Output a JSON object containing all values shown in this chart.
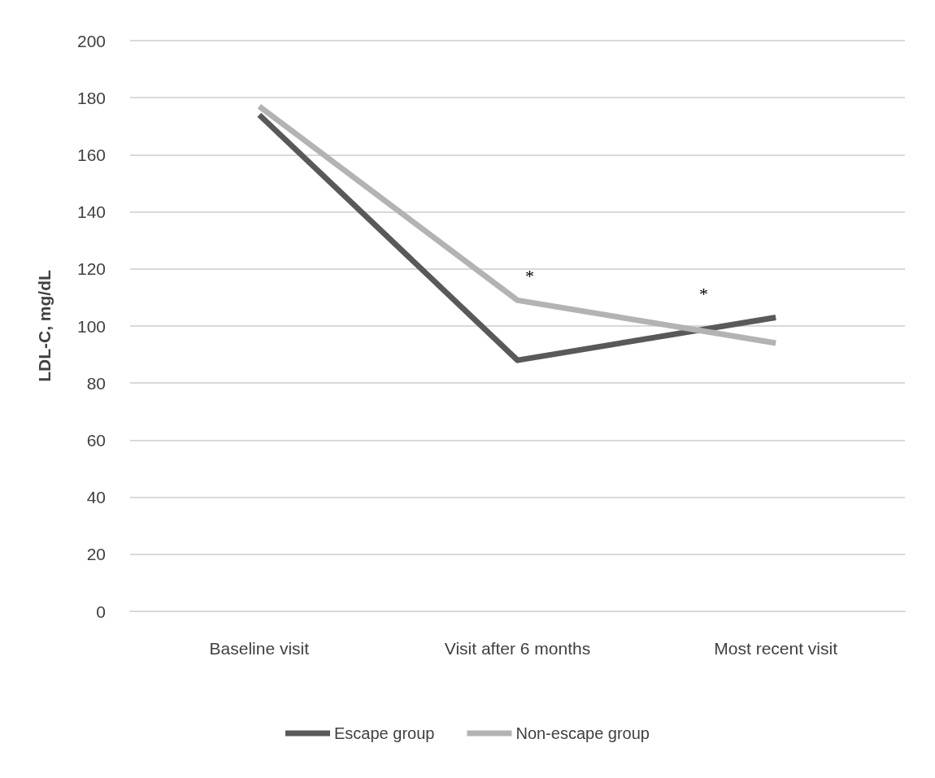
{
  "chart_data": {
    "type": "line",
    "ylabel": "LDL-C, mg/dL",
    "categories": [
      "Baseline visit",
      "Visit after 6 months",
      "Most recent visit"
    ],
    "series": [
      {
        "name": "Escape group",
        "color": "#595959",
        "values": [
          174,
          88,
          103
        ]
      },
      {
        "name": "Non-escape group",
        "color": "#b3b3b3",
        "values": [
          177,
          109,
          94
        ]
      }
    ],
    "ylim": [
      0,
      200
    ],
    "yticks": [
      0,
      20,
      40,
      60,
      80,
      100,
      120,
      140,
      160,
      180,
      200
    ],
    "grid": "y",
    "legend": "bottom",
    "marker": "none",
    "line_style": "solid",
    "annotations": [
      "*",
      "*"
    ]
  }
}
